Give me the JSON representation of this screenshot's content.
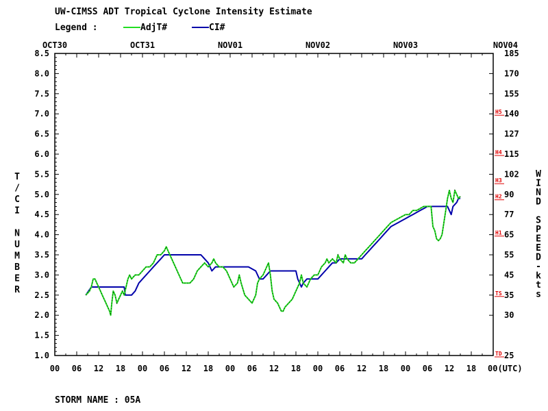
{
  "title": "UW-CIMSS ADT Tropical Cyclone Intensity Estimate",
  "legend": {
    "label": "Legend :",
    "items": [
      {
        "name": "AdjT#",
        "color": "#22dd22"
      },
      {
        "name": "CI#",
        "color": "#0000aa"
      }
    ]
  },
  "footer": "STORM NAME : 05A",
  "chart_data": {
    "type": "line",
    "title": "UW-CIMSS ADT Tropical Cyclone Intensity Estimate",
    "xlabel": "(UTC)",
    "ylabel_left": "T/CI NUMBER",
    "ylabel_right": "WIND SPEED-kts",
    "x_unit": "hours from OCT30 00 UTC",
    "xlim": [
      0,
      120
    ],
    "ylim": [
      1.0,
      8.5
    ],
    "date_labels": [
      {
        "label": "OCT30",
        "x": 0
      },
      {
        "label": "OCT31",
        "x": 24
      },
      {
        "label": "NOV01",
        "x": 48
      },
      {
        "label": "NOV02",
        "x": 72
      },
      {
        "label": "NOV03",
        "x": 96
      },
      {
        "label": "NOV04",
        "x": 120
      }
    ],
    "x_ticks": [
      {
        "label": "00",
        "x": 0
      },
      {
        "label": "06",
        "x": 6
      },
      {
        "label": "12",
        "x": 12
      },
      {
        "label": "18",
        "x": 18
      },
      {
        "label": "00",
        "x": 24
      },
      {
        "label": "06",
        "x": 30
      },
      {
        "label": "12",
        "x": 36
      },
      {
        "label": "18",
        "x": 42
      },
      {
        "label": "00",
        "x": 48
      },
      {
        "label": "06",
        "x": 54
      },
      {
        "label": "12",
        "x": 60
      },
      {
        "label": "18",
        "x": 66
      },
      {
        "label": "00",
        "x": 72
      },
      {
        "label": "06",
        "x": 78
      },
      {
        "label": "12",
        "x": 84
      },
      {
        "label": "18",
        "x": 90
      },
      {
        "label": "00",
        "x": 96
      },
      {
        "label": "06",
        "x": 102
      },
      {
        "label": "12",
        "x": 108
      },
      {
        "label": "18",
        "x": 114
      },
      {
        "label": "00(UTC)",
        "x": 120
      }
    ],
    "left_ticks": [
      "1.0",
      "1.5",
      "2.0",
      "2.5",
      "3.0",
      "3.5",
      "4.0",
      "4.5",
      "5.0",
      "5.5",
      "6.0",
      "6.5",
      "7.0",
      "7.5",
      "8.0",
      "8.5"
    ],
    "right_ticks": [
      {
        "label": "25",
        "ci": 1.0
      },
      {
        "label": "30",
        "ci": 2.0
      },
      {
        "label": "35",
        "ci": 2.5
      },
      {
        "label": "45",
        "ci": 3.0
      },
      {
        "label": "55",
        "ci": 3.5
      },
      {
        "label": "65",
        "ci": 4.0
      },
      {
        "label": "77",
        "ci": 4.5
      },
      {
        "label": "90",
        "ci": 5.0
      },
      {
        "label": "102",
        "ci": 5.5
      },
      {
        "label": "115",
        "ci": 6.0
      },
      {
        "label": "127",
        "ci": 6.5
      },
      {
        "label": "140",
        "ci": 7.0
      },
      {
        "label": "155",
        "ci": 7.5
      },
      {
        "label": "170",
        "ci": 8.0
      },
      {
        "label": "185",
        "ci": 8.5
      }
    ],
    "saffir_simpson": [
      {
        "label": "TD",
        "ci": 1.0
      },
      {
        "label": "TS",
        "ci": 2.5
      },
      {
        "label": "H1",
        "ci": 4.0
      },
      {
        "label": "H2",
        "ci": 4.9
      },
      {
        "label": "H3",
        "ci": 5.3
      },
      {
        "label": "H4",
        "ci": 6.0
      },
      {
        "label": "H5",
        "ci": 7.0
      }
    ],
    "series": [
      {
        "name": "AdjT#",
        "color": "#22dd22",
        "points": [
          [
            8.5,
            2.5
          ],
          [
            9.5,
            2.6
          ],
          [
            10,
            2.7
          ],
          [
            10.5,
            2.9
          ],
          [
            11,
            2.9
          ],
          [
            11.5,
            2.8
          ],
          [
            12,
            2.7
          ],
          [
            12.5,
            2.6
          ],
          [
            13,
            2.5
          ],
          [
            13.5,
            2.4
          ],
          [
            14,
            2.3
          ],
          [
            14.5,
            2.2
          ],
          [
            15,
            2.1
          ],
          [
            15.3,
            2.0
          ],
          [
            15.6,
            2.3
          ],
          [
            16,
            2.6
          ],
          [
            16.5,
            2.5
          ],
          [
            17,
            2.3
          ],
          [
            17.5,
            2.4
          ],
          [
            18,
            2.5
          ],
          [
            18.5,
            2.6
          ],
          [
            19,
            2.5
          ],
          [
            19.5,
            2.7
          ],
          [
            20,
            2.9
          ],
          [
            20.5,
            3.0
          ],
          [
            21,
            2.9
          ],
          [
            22,
            3.0
          ],
          [
            23,
            3.0
          ],
          [
            24,
            3.1
          ],
          [
            25,
            3.2
          ],
          [
            26,
            3.2
          ],
          [
            27,
            3.3
          ],
          [
            27.5,
            3.4
          ],
          [
            28,
            3.5
          ],
          [
            29,
            3.5
          ],
          [
            30,
            3.6
          ],
          [
            30.5,
            3.7
          ],
          [
            31,
            3.6
          ],
          [
            32,
            3.4
          ],
          [
            33,
            3.2
          ],
          [
            34,
            3.0
          ],
          [
            35,
            2.8
          ],
          [
            36,
            2.8
          ],
          [
            37,
            2.8
          ],
          [
            38,
            2.9
          ],
          [
            39,
            3.1
          ],
          [
            40,
            3.2
          ],
          [
            41,
            3.3
          ],
          [
            42,
            3.2
          ],
          [
            43,
            3.3
          ],
          [
            43.5,
            3.4
          ],
          [
            44,
            3.3
          ],
          [
            45,
            3.2
          ],
          [
            46,
            3.2
          ],
          [
            47,
            3.1
          ],
          [
            48,
            2.9
          ],
          [
            49,
            2.7
          ],
          [
            50,
            2.8
          ],
          [
            50.5,
            3.0
          ],
          [
            51,
            2.8
          ],
          [
            52,
            2.5
          ],
          [
            53,
            2.4
          ],
          [
            54,
            2.3
          ],
          [
            55,
            2.5
          ],
          [
            55.5,
            2.8
          ],
          [
            56,
            2.9
          ],
          [
            57,
            3.0
          ],
          [
            57.5,
            3.1
          ],
          [
            58,
            3.2
          ],
          [
            58.5,
            3.3
          ],
          [
            59,
            3.0
          ],
          [
            59.5,
            2.6
          ],
          [
            60,
            2.4
          ],
          [
            61,
            2.3
          ],
          [
            62,
            2.1
          ],
          [
            62.5,
            2.1
          ],
          [
            63,
            2.2
          ],
          [
            64,
            2.3
          ],
          [
            65,
            2.4
          ],
          [
            66,
            2.6
          ],
          [
            67,
            2.8
          ],
          [
            67.5,
            3.0
          ],
          [
            68,
            2.8
          ],
          [
            69,
            2.7
          ],
          [
            70,
            2.9
          ],
          [
            71,
            3.0
          ],
          [
            72,
            3.0
          ],
          [
            73,
            3.2
          ],
          [
            74,
            3.3
          ],
          [
            74.5,
            3.4
          ],
          [
            75,
            3.3
          ],
          [
            76,
            3.4
          ],
          [
            77,
            3.3
          ],
          [
            77.5,
            3.5
          ],
          [
            78,
            3.4
          ],
          [
            79,
            3.3
          ],
          [
            79.5,
            3.5
          ],
          [
            80,
            3.4
          ],
          [
            81,
            3.3
          ],
          [
            82,
            3.3
          ],
          [
            83,
            3.4
          ],
          [
            84,
            3.5
          ],
          [
            85,
            3.6
          ],
          [
            86,
            3.7
          ],
          [
            87,
            3.8
          ],
          [
            88,
            3.9
          ],
          [
            89,
            4.0
          ],
          [
            90,
            4.1
          ],
          [
            91,
            4.2
          ],
          [
            92,
            4.3
          ],
          [
            93,
            4.35
          ],
          [
            94,
            4.4
          ],
          [
            95,
            4.45
          ],
          [
            96,
            4.5
          ],
          [
            97,
            4.5
          ],
          [
            98,
            4.6
          ],
          [
            99,
            4.6
          ],
          [
            100,
            4.65
          ],
          [
            101,
            4.7
          ],
          [
            102,
            4.7
          ],
          [
            103,
            4.7
          ],
          [
            103.5,
            4.2
          ],
          [
            104,
            4.1
          ],
          [
            104.5,
            3.9
          ],
          [
            105,
            3.85
          ],
          [
            105.5,
            3.9
          ],
          [
            106,
            4.0
          ],
          [
            106.5,
            4.3
          ],
          [
            107,
            4.6
          ],
          [
            107.5,
            4.9
          ],
          [
            108,
            5.1
          ],
          [
            108.5,
            4.9
          ],
          [
            109,
            4.8
          ],
          [
            109.5,
            5.1
          ],
          [
            110,
            5.0
          ],
          [
            110.5,
            4.9
          ],
          [
            111,
            4.95
          ]
        ]
      },
      {
        "name": "CI#",
        "color": "#0000aa",
        "points": [
          [
            8.5,
            2.5
          ],
          [
            10,
            2.7
          ],
          [
            13,
            2.7
          ],
          [
            16,
            2.7
          ],
          [
            19,
            2.7
          ],
          [
            19.3,
            2.5
          ],
          [
            21,
            2.5
          ],
          [
            22,
            2.6
          ],
          [
            23,
            2.8
          ],
          [
            24,
            2.9
          ],
          [
            25,
            3.0
          ],
          [
            26,
            3.1
          ],
          [
            27,
            3.2
          ],
          [
            28,
            3.3
          ],
          [
            29,
            3.4
          ],
          [
            30,
            3.5
          ],
          [
            31,
            3.5
          ],
          [
            34,
            3.5
          ],
          [
            37,
            3.5
          ],
          [
            40,
            3.5
          ],
          [
            40.5,
            3.45
          ],
          [
            41,
            3.4
          ],
          [
            42,
            3.3
          ],
          [
            43,
            3.1
          ],
          [
            44,
            3.2
          ],
          [
            47,
            3.2
          ],
          [
            50,
            3.2
          ],
          [
            53,
            3.2
          ],
          [
            55,
            3.1
          ],
          [
            56,
            2.9
          ],
          [
            57,
            2.9
          ],
          [
            58,
            3.0
          ],
          [
            59,
            3.1
          ],
          [
            60,
            3.1
          ],
          [
            63,
            3.1
          ],
          [
            66,
            3.1
          ],
          [
            66.5,
            2.9
          ],
          [
            67.5,
            2.7
          ],
          [
            68,
            2.8
          ],
          [
            69,
            2.9
          ],
          [
            72,
            2.9
          ],
          [
            73,
            3.0
          ],
          [
            74,
            3.1
          ],
          [
            75,
            3.2
          ],
          [
            76,
            3.3
          ],
          [
            77,
            3.3
          ],
          [
            78,
            3.4
          ],
          [
            81,
            3.4
          ],
          [
            84,
            3.4
          ],
          [
            85,
            3.5
          ],
          [
            86,
            3.6
          ],
          [
            87,
            3.7
          ],
          [
            88,
            3.8
          ],
          [
            89,
            3.9
          ],
          [
            90,
            4.0
          ],
          [
            91,
            4.1
          ],
          [
            92,
            4.2
          ],
          [
            93,
            4.25
          ],
          [
            94,
            4.3
          ],
          [
            95,
            4.35
          ],
          [
            96,
            4.4
          ],
          [
            97,
            4.45
          ],
          [
            98,
            4.5
          ],
          [
            99,
            4.55
          ],
          [
            100,
            4.6
          ],
          [
            101,
            4.65
          ],
          [
            102,
            4.7
          ],
          [
            105,
            4.7
          ],
          [
            107.5,
            4.7
          ],
          [
            108,
            4.6
          ],
          [
            108.5,
            4.5
          ],
          [
            109,
            4.7
          ],
          [
            110,
            4.8
          ],
          [
            110.5,
            4.9
          ],
          [
            111,
            4.9
          ]
        ]
      }
    ],
    "grid": false,
    "legend_position": "top-left"
  }
}
